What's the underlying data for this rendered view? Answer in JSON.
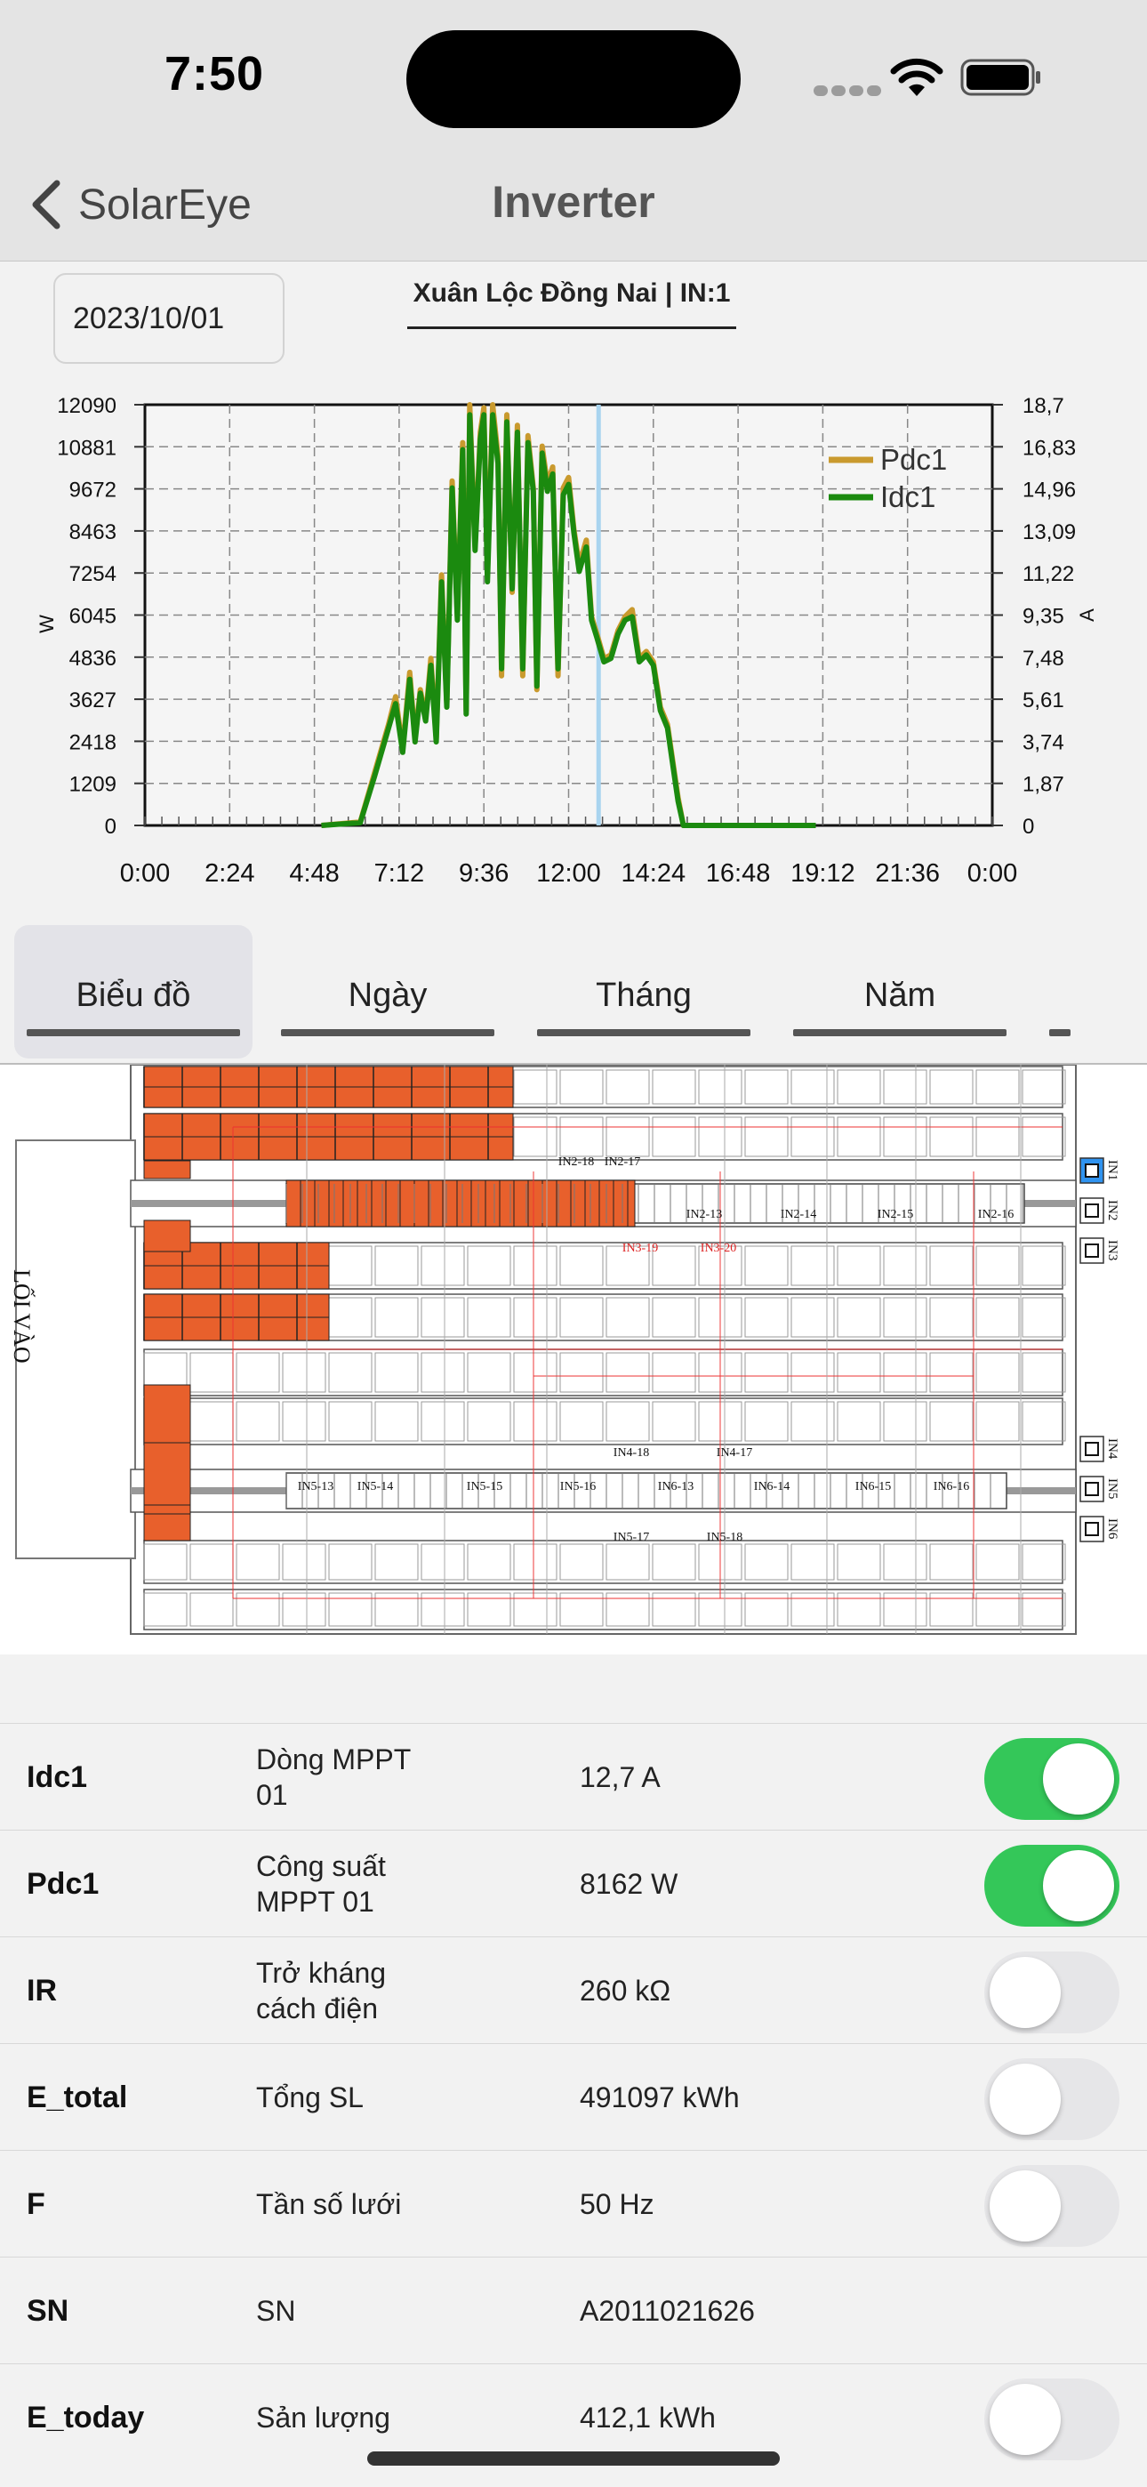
{
  "status_bar": {
    "time": "7:50"
  },
  "nav": {
    "back_label": "SolarEye",
    "title": "Inverter"
  },
  "header": {
    "date": "2023/10/01",
    "station": "Xuân Lộc Đồng Nai | IN:1"
  },
  "chart_data": {
    "type": "line",
    "x_ticks": [
      "0:00",
      "2:24",
      "4:48",
      "7:12",
      "9:36",
      "12:00",
      "14:24",
      "16:48",
      "19:12",
      "21:36",
      "0:00"
    ],
    "y_left_ticks": [
      "12090",
      "10881",
      "9672",
      "8463",
      "7254",
      "6045",
      "4836",
      "3627",
      "2418",
      "1209",
      "0"
    ],
    "y_right_ticks": [
      "18,7",
      "16,83",
      "14,96",
      "13,09",
      "11,22",
      "9,35",
      "7,48",
      "5,61",
      "3,74",
      "1,87",
      "0"
    ],
    "ylabel_left": "W",
    "ylabel_right": "A",
    "ylim_left": [
      0,
      12090
    ],
    "ylim_right": [
      0,
      18.7
    ],
    "xlim_hours": [
      0,
      24
    ],
    "cursor_hour": 12.85,
    "legend_position": "top-right",
    "grid": true,
    "series": [
      {
        "name": "Pdc1",
        "color": "#c99a2e",
        "axis": "left",
        "x": [
          5.0,
          6.1,
          6.5,
          6.9,
          7.1,
          7.3,
          7.5,
          7.65,
          7.8,
          7.95,
          8.1,
          8.25,
          8.4,
          8.55,
          8.7,
          8.85,
          9.0,
          9.1,
          9.2,
          9.35,
          9.5,
          9.6,
          9.7,
          9.85,
          10.0,
          10.1,
          10.25,
          10.4,
          10.55,
          10.7,
          10.85,
          11.0,
          11.1,
          11.25,
          11.4,
          11.55,
          11.7,
          11.85,
          12.0,
          12.15,
          12.3,
          12.5,
          12.65,
          12.8,
          13.0,
          13.2,
          13.4,
          13.6,
          13.8,
          14.0,
          14.2,
          14.4,
          14.6,
          14.8,
          15.0,
          15.1,
          15.25,
          15.5,
          15.8,
          16.2,
          17.0,
          18.0,
          19.0
        ],
        "y": [
          0,
          100,
          1500,
          2900,
          3700,
          2200,
          4400,
          2500,
          3900,
          3100,
          4800,
          2500,
          7200,
          3500,
          9900,
          6000,
          11000,
          3300,
          12090,
          8000,
          11300,
          12000,
          7200,
          12090,
          10600,
          4300,
          11800,
          6700,
          11500,
          4300,
          11200,
          9700,
          3900,
          10900,
          9800,
          10300,
          4300,
          9700,
          10000,
          8500,
          7500,
          8200,
          6000,
          5500,
          4800,
          4900,
          5600,
          6000,
          6200,
          4800,
          5000,
          4700,
          3400,
          2900,
          1500,
          800,
          0,
          0,
          0,
          0,
          0,
          0,
          0
        ]
      },
      {
        "name": "Idc1",
        "color": "#1b8a0f",
        "axis": "left",
        "x": [
          5.0,
          6.1,
          6.5,
          6.9,
          7.1,
          7.3,
          7.5,
          7.65,
          7.8,
          7.95,
          8.1,
          8.25,
          8.4,
          8.55,
          8.7,
          8.85,
          9.0,
          9.1,
          9.2,
          9.35,
          9.5,
          9.6,
          9.7,
          9.85,
          10.0,
          10.1,
          10.25,
          10.4,
          10.55,
          10.7,
          10.85,
          11.0,
          11.1,
          11.25,
          11.4,
          11.55,
          11.7,
          11.85,
          12.0,
          12.15,
          12.3,
          12.5,
          12.65,
          12.8,
          13.0,
          13.2,
          13.4,
          13.6,
          13.8,
          14.0,
          14.2,
          14.4,
          14.6,
          14.8,
          15.0,
          15.1,
          15.25,
          15.5,
          15.8,
          16.2,
          17.0,
          18.0,
          19.0
        ],
        "y": [
          0,
          80,
          1400,
          2800,
          3500,
          2100,
          4200,
          2400,
          3800,
          3000,
          4600,
          2400,
          7000,
          3400,
          9700,
          5900,
          10800,
          3200,
          11800,
          7900,
          11100,
          11800,
          7000,
          11800,
          10400,
          4500,
          11600,
          6800,
          11300,
          4500,
          11000,
          9600,
          4000,
          10700,
          9600,
          10100,
          4500,
          9500,
          9800,
          8400,
          7300,
          8000,
          5900,
          5400,
          4700,
          4800,
          5500,
          5900,
          6000,
          4700,
          4900,
          4600,
          3300,
          2800,
          1400,
          700,
          0,
          0,
          0,
          0,
          0,
          0,
          0
        ]
      }
    ]
  },
  "tabs": [
    "Biểu đồ",
    "Ngày",
    "Tháng",
    "Năm"
  ],
  "layout_diagram": {
    "entrance_label": "LỐI VÀO",
    "strings": [
      "IN2-17",
      "IN2-18",
      "IN2-13",
      "IN2-14",
      "IN2-15",
      "IN2-16",
      "IN3-19",
      "IN3-20",
      "IN4-18",
      "IN4-17",
      "IN5-13",
      "IN5-14",
      "IN5-15",
      "IN5-16",
      "IN6-13",
      "IN6-14",
      "IN6-15",
      "IN6-16",
      "IN5-17",
      "IN5-18"
    ],
    "inverters": [
      "IN1",
      "IN2",
      "IN3",
      "IN4",
      "IN5",
      "IN6"
    ]
  },
  "params": [
    {
      "code": "Idc1",
      "name": "Dòng MPPT  01",
      "value": "12,7 A",
      "toggle": true
    },
    {
      "code": "Pdc1",
      "name": "Công suất MPPT 01",
      "value": "8162 W",
      "toggle": true
    },
    {
      "code": "IR",
      "name": "Trở kháng cách điện",
      "value": "260 kΩ",
      "toggle": false
    },
    {
      "code": "E_total",
      "name": "Tổng SL",
      "value": "491097 kWh",
      "toggle": false
    },
    {
      "code": "F",
      "name": "Tần số lưới",
      "value": "50 Hz",
      "toggle": false
    },
    {
      "code": "SN",
      "name": "SN",
      "value": "A2011021626",
      "toggle": null
    },
    {
      "code": "E_today",
      "name": "Sản lượng",
      "value": "412,1 kWh",
      "toggle": false
    }
  ],
  "colors": {
    "accent_on": "#34c759",
    "panel_fill": "#e8602c",
    "pdc_line": "#c99a2e",
    "idc_line": "#1b8a0f"
  }
}
